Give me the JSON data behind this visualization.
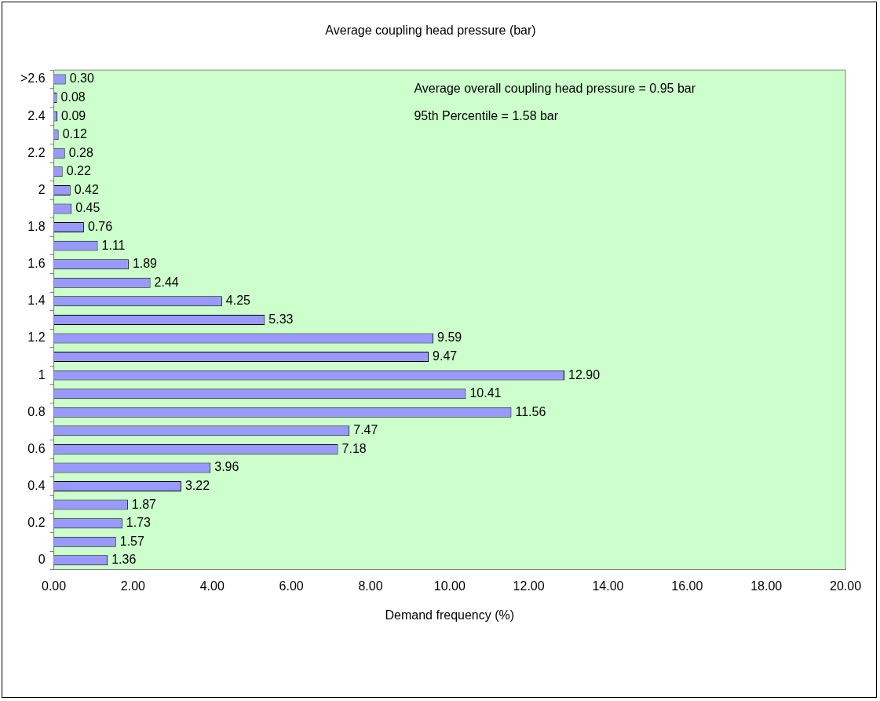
{
  "chart_data": {
    "type": "bar",
    "orientation": "horizontal",
    "title": "Average coupling head pressure (bar)",
    "xlabel": "Demand frequency (%)",
    "categories": [
      ">2.6",
      null,
      "2.4",
      null,
      "2.2",
      null,
      "2",
      null,
      "1.8",
      null,
      "1.6",
      null,
      "1.4",
      null,
      "1.2",
      null,
      "1",
      null,
      "0.8",
      null,
      "0.6",
      null,
      "0.4",
      null,
      "0.2",
      null,
      "0"
    ],
    "values": [
      0.3,
      0.08,
      0.09,
      0.12,
      0.28,
      0.22,
      0.42,
      0.45,
      0.76,
      1.11,
      1.89,
      2.44,
      4.25,
      5.33,
      9.59,
      9.47,
      12.9,
      10.41,
      11.56,
      7.47,
      7.18,
      3.96,
      3.22,
      1.87,
      1.73,
      1.57,
      1.36
    ],
    "value_labels": [
      "0.30",
      "0.08",
      "0.09",
      "0.12",
      "0.28",
      "0.22",
      "0.42",
      "0.45",
      "0.76",
      "1.11",
      "1.89",
      "2.44",
      "4.25",
      "5.33",
      "9.59",
      "9.47",
      "12.90",
      "10.41",
      "11.56",
      "7.47",
      "7.18",
      "3.96",
      "3.22",
      "1.87",
      "1.73",
      "1.57",
      "1.36"
    ],
    "color": "#9999ff",
    "xlim": [
      0,
      20
    ],
    "xticks": [
      {
        "value": 0,
        "label": "0.00"
      },
      {
        "value": 2,
        "label": "2.00"
      },
      {
        "value": 4,
        "label": "4.00"
      },
      {
        "value": 6,
        "label": "6.00"
      },
      {
        "value": 8,
        "label": "8.00"
      },
      {
        "value": 10,
        "label": "10.00"
      },
      {
        "value": 12,
        "label": "12.00"
      },
      {
        "value": 14,
        "label": "14.00"
      },
      {
        "value": 16,
        "label": "16.00"
      },
      {
        "value": 18,
        "label": "18.00"
      },
      {
        "value": 20,
        "label": "20.00"
      }
    ],
    "annotations": [
      "Average overall coupling head pressure = 0.95 bar",
      "95th Percentile = 1.58 bar"
    ]
  }
}
